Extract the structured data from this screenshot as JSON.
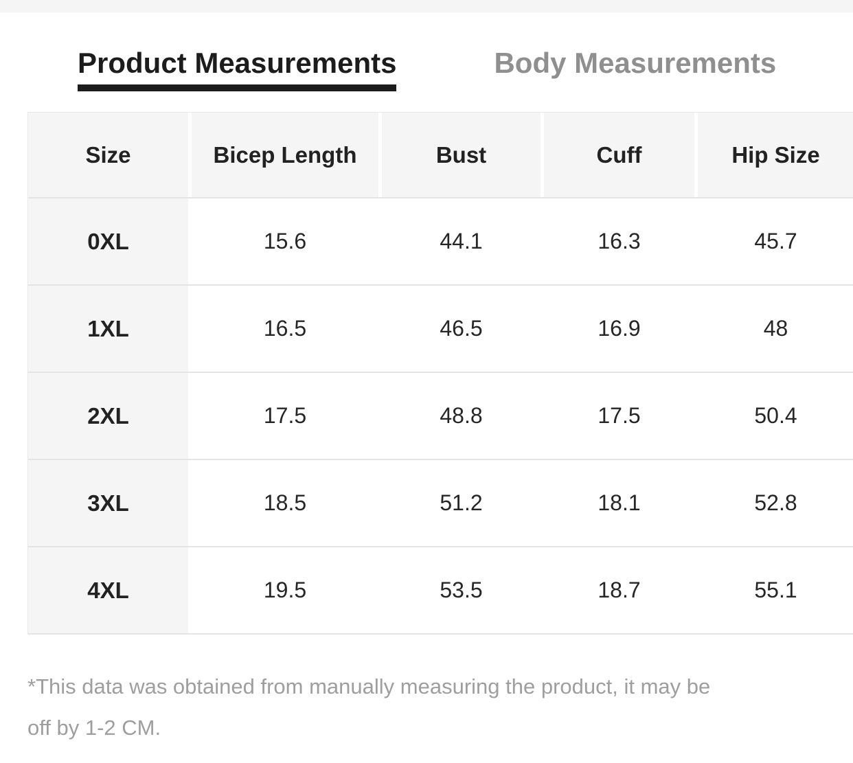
{
  "tabs": [
    {
      "label": "Product Measurements",
      "active": true
    },
    {
      "label": "Body Measurements",
      "active": false
    }
  ],
  "table": {
    "columns": [
      "Size",
      "Bicep Length",
      "Bust",
      "Cuff",
      "Hip Size"
    ],
    "rows": [
      {
        "size": "0XL",
        "values": [
          "15.6",
          "44.1",
          "16.3",
          "45.7"
        ]
      },
      {
        "size": "1XL",
        "values": [
          "16.5",
          "46.5",
          "16.9",
          "48"
        ]
      },
      {
        "size": "2XL",
        "values": [
          "17.5",
          "48.8",
          "17.5",
          "50.4"
        ]
      },
      {
        "size": "3XL",
        "values": [
          "18.5",
          "51.2",
          "18.1",
          "52.8"
        ]
      },
      {
        "size": "4XL",
        "values": [
          "19.5",
          "53.5",
          "18.7",
          "55.1"
        ]
      }
    ]
  },
  "footnote": {
    "lines": [
      "*This data was obtained from manually measuring the product, it may be",
      "off by 1-2 CM."
    ]
  },
  "colors": {
    "active_tab": "#1c1c1c",
    "inactive_tab": "#8f8f8f",
    "header_bg": "#f5f5f5",
    "row_border": "#e4e4e4",
    "note_text": "#9e9e9e"
  }
}
